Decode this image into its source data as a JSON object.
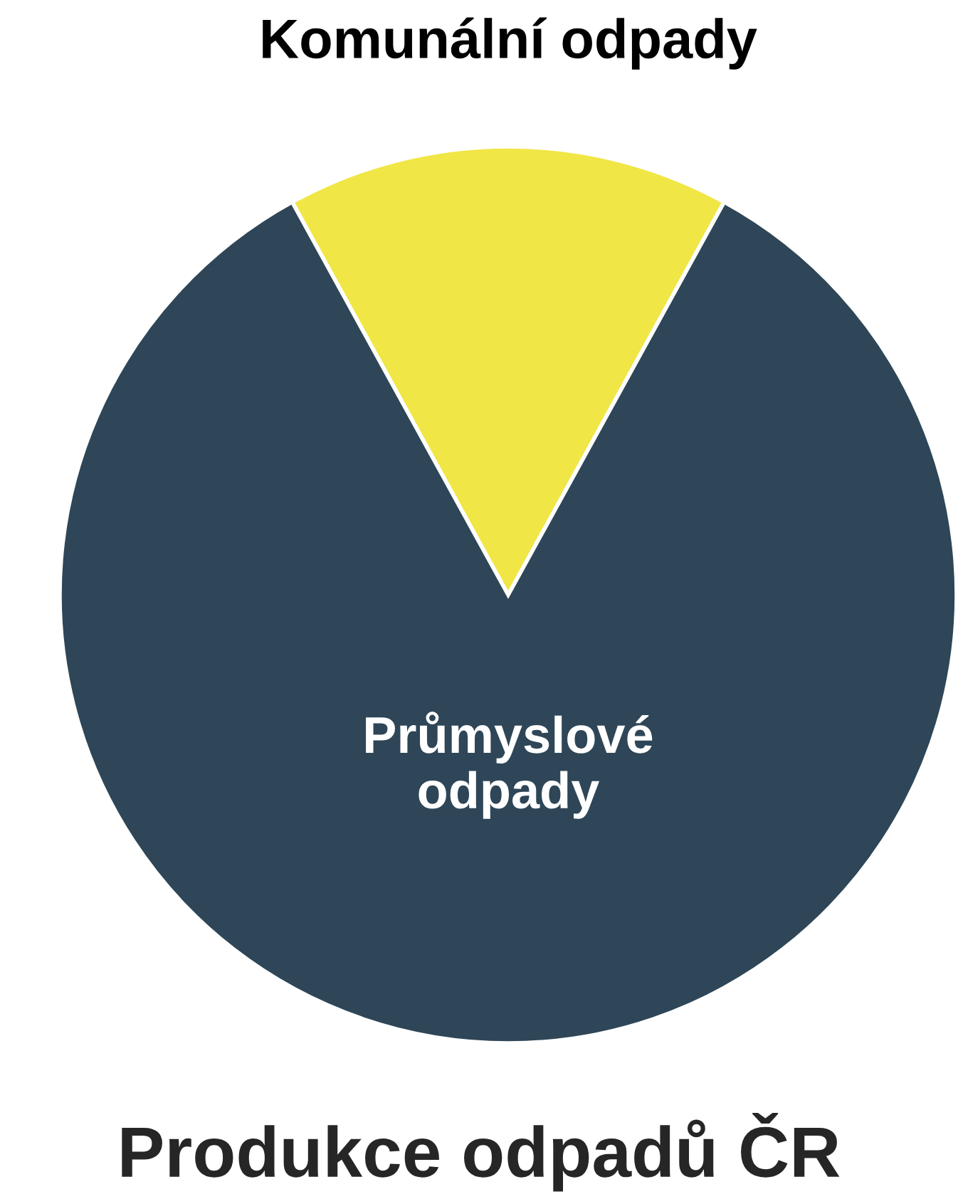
{
  "chart_data": {
    "type": "pie",
    "title": "Produkce odpadů ČR",
    "categories": [
      "Komunální odpady",
      "Průmyslové odpady"
    ],
    "values": [
      16,
      84
    ],
    "colors": [
      "#f0e646",
      "#2e4657"
    ]
  }
}
